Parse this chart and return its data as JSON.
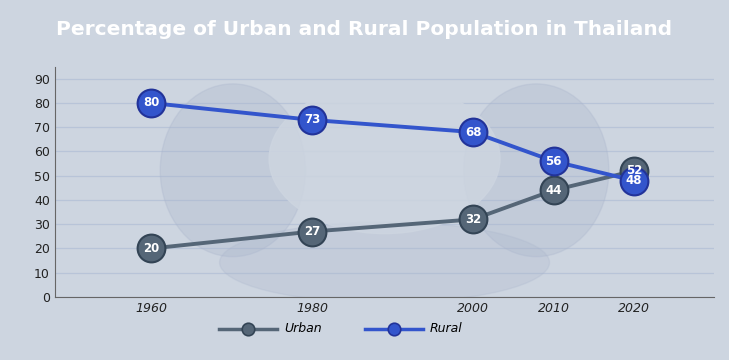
{
  "title": "Percentage of Urban and Rural Population in Thailand",
  "years": [
    1960,
    1980,
    2000,
    2010,
    2020
  ],
  "urban": [
    20,
    27,
    32,
    44,
    52
  ],
  "rural": [
    80,
    73,
    68,
    56,
    48
  ],
  "urban_label": "Urban",
  "rural_label": "Rural",
  "urban_color": "#556677",
  "urban_marker_color": "#556677",
  "rural_color": "#3355cc",
  "rural_marker_color": "#3355cc",
  "ylim": [
    0,
    95
  ],
  "yticks": [
    0,
    10,
    20,
    30,
    40,
    50,
    60,
    70,
    80,
    90
  ],
  "bg_plot": "#cdd5e0",
  "bg_title": "#3a57a7",
  "title_color": "#ffffff",
  "grid_color": "#b8c4d8",
  "marker_size": 20,
  "linewidth": 2.8,
  "xlim_left": 1948,
  "xlim_right": 2030
}
